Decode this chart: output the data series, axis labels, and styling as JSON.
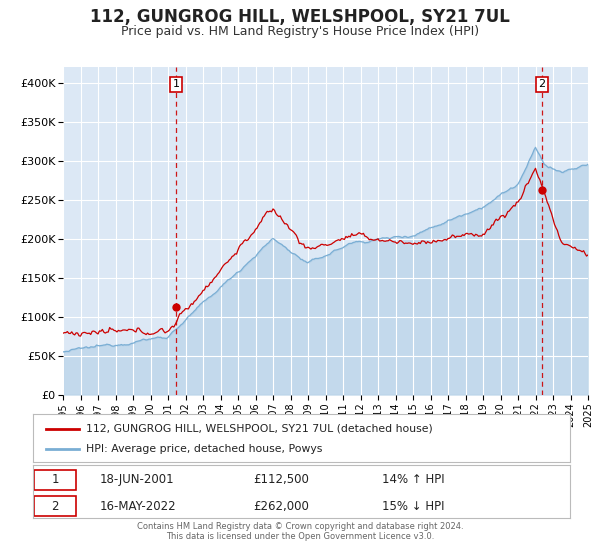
{
  "title": "112, GUNGROG HILL, WELSHPOOL, SY21 7UL",
  "subtitle": "Price paid vs. HM Land Registry's House Price Index (HPI)",
  "legend_line1": "112, GUNGROG HILL, WELSHPOOL, SY21 7UL (detached house)",
  "legend_line2": "HPI: Average price, detached house, Powys",
  "annotation1_date": "18-JUN-2001",
  "annotation1_price": "£112,500",
  "annotation1_hpi": "14% ↑ HPI",
  "annotation2_date": "16-MAY-2022",
  "annotation2_price": "£262,000",
  "annotation2_hpi": "15% ↓ HPI",
  "sale1_year": 2001.46,
  "sale1_value": 112500,
  "sale2_year": 2022.37,
  "sale2_value": 262000,
  "year_start": 1995,
  "year_end": 2025,
  "ylim_min": 0,
  "ylim_max": 420000,
  "yticks": [
    0,
    50000,
    100000,
    150000,
    200000,
    250000,
    300000,
    350000,
    400000
  ],
  "hpi_color": "#7aaed4",
  "property_color": "#cc0000",
  "vline_color": "#cc0000",
  "dot_color": "#cc0000",
  "background_color": "#dce8f5",
  "grid_color": "#ffffff",
  "footer_text": "Contains HM Land Registry data © Crown copyright and database right 2024.\nThis data is licensed under the Open Government Licence v3.0.",
  "title_fontsize": 12,
  "subtitle_fontsize": 9
}
